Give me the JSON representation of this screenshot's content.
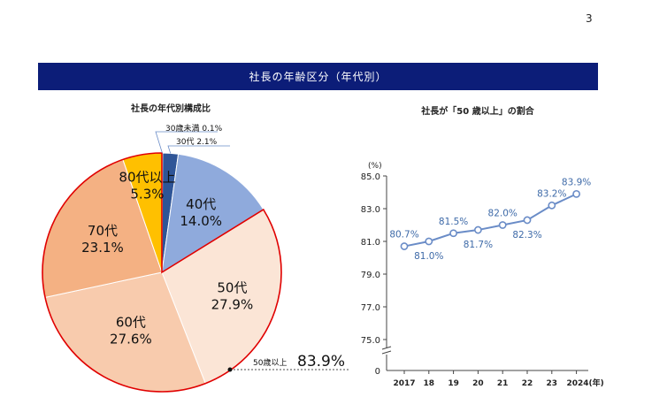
{
  "page_number": "3",
  "banner_title": "社長の年齢区分（年代別）",
  "colors": {
    "banner": "#0c1d78",
    "pie_under30": "#1f3864",
    "pie_30s": "#2f5597",
    "pie_40s": "#8faadc",
    "pie_50s": "#fbe5d6",
    "pie_60s": "#f8cbad",
    "pie_70s": "#f4b183",
    "pie_80s": "#ffc000",
    "highlight_outline": "#e00000",
    "line": "#6a8cc7",
    "line_labels": "#3e6aa8"
  },
  "chart_data": [
    {
      "type": "pie",
      "title": "社長の年代別構成比",
      "slices": [
        {
          "label": "30歳未満",
          "value": 0.1,
          "value_label": "0.1%"
        },
        {
          "label": "30代",
          "value": 2.1,
          "value_label": "2.1%"
        },
        {
          "label": "40代",
          "value": 14.0,
          "value_label": "14.0%"
        },
        {
          "label": "50代",
          "value": 27.9,
          "value_label": "27.9%"
        },
        {
          "label": "60代",
          "value": 27.6,
          "value_label": "27.6%"
        },
        {
          "label": "70代",
          "value": 23.1,
          "value_label": "23.1%"
        },
        {
          "label": "80代以上",
          "value": 5.3,
          "value_label": "5.3%"
        }
      ],
      "highlight": {
        "label": "50歳以上",
        "value": 83.9,
        "value_label": "83.9%"
      }
    },
    {
      "type": "line",
      "title": "社長が「50 歳以上」の割合",
      "ylabel": "(%)",
      "x": [
        "2017",
        "18",
        "19",
        "20",
        "21",
        "22",
        "23",
        "2024(年)"
      ],
      "values": [
        80.7,
        81.0,
        81.5,
        81.7,
        82.0,
        82.3,
        83.2,
        83.9
      ],
      "value_labels": [
        "80.7%",
        "81.0%",
        "81.5%",
        "81.7%",
        "82.0%",
        "82.3%",
        "83.2%",
        "83.9%"
      ],
      "label_positions": [
        "above",
        "below",
        "above",
        "below",
        "above",
        "below",
        "above",
        "above"
      ],
      "yticks": [
        "75.0",
        "77.0",
        "79.0",
        "81.0",
        "83.0",
        "85.0"
      ],
      "ylim": [
        75,
        85
      ],
      "axis_break": true,
      "y_zero_label": "0",
      "grid": false
    }
  ]
}
